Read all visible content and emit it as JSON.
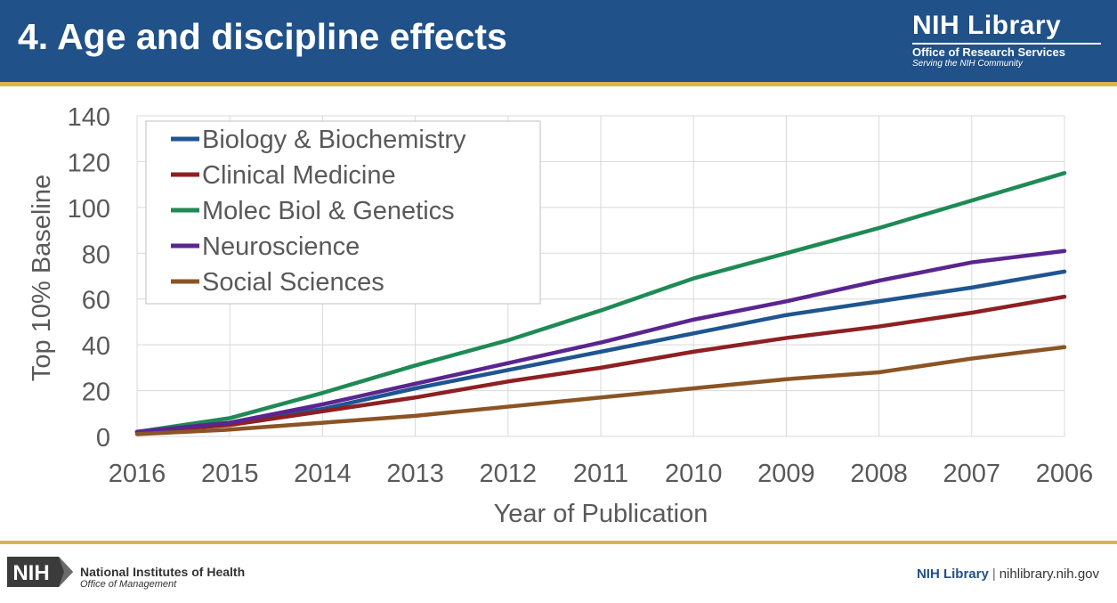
{
  "slide": {
    "title": "4. Age and discipline effects",
    "brand_name": "NIH Library",
    "brand_sub": "Office of Research Services",
    "brand_tagline": "Serving the NIH Community"
  },
  "footer": {
    "logo_text": "NIH",
    "org_name": "National Institutes of Health",
    "org_office": "Office of Management",
    "library": "NIH Library",
    "separator": "|",
    "url": "nihlibrary.nih.gov"
  },
  "colors": {
    "header_bg": "#205189",
    "rule": "#d7b74b"
  },
  "chart_data": {
    "type": "line",
    "title": "",
    "xlabel": "Year of Publication",
    "ylabel": "Top 10% Baseline",
    "categories": [
      "2016",
      "2015",
      "2014",
      "2013",
      "2012",
      "2011",
      "2010",
      "2009",
      "2008",
      "2007",
      "2006"
    ],
    "ylim": [
      0,
      140
    ],
    "yticks": [
      0,
      20,
      40,
      60,
      80,
      100,
      120,
      140
    ],
    "grid": true,
    "legend_position": "top-left",
    "series": [
      {
        "name": "Biology & Biochemistry",
        "color": "#1f5591",
        "values": [
          2,
          6,
          12,
          21,
          29,
          37,
          45,
          53,
          59,
          65,
          72
        ]
      },
      {
        "name": "Clinical Medicine",
        "color": "#8e1f22",
        "values": [
          2,
          5,
          11,
          17,
          24,
          30,
          37,
          43,
          48,
          54,
          61
        ]
      },
      {
        "name": "Molec Biol & Genetics",
        "color": "#1e8a55",
        "values": [
          2,
          8,
          19,
          31,
          42,
          55,
          69,
          80,
          91,
          103,
          115
        ]
      },
      {
        "name": "Neuroscience",
        "color": "#5a2590",
        "values": [
          2,
          6,
          14,
          23,
          32,
          41,
          51,
          59,
          68,
          76,
          81
        ]
      },
      {
        "name": "Social Sciences",
        "color": "#8b5424",
        "values": [
          1,
          3,
          6,
          9,
          13,
          17,
          21,
          25,
          28,
          34,
          39
        ]
      }
    ]
  }
}
